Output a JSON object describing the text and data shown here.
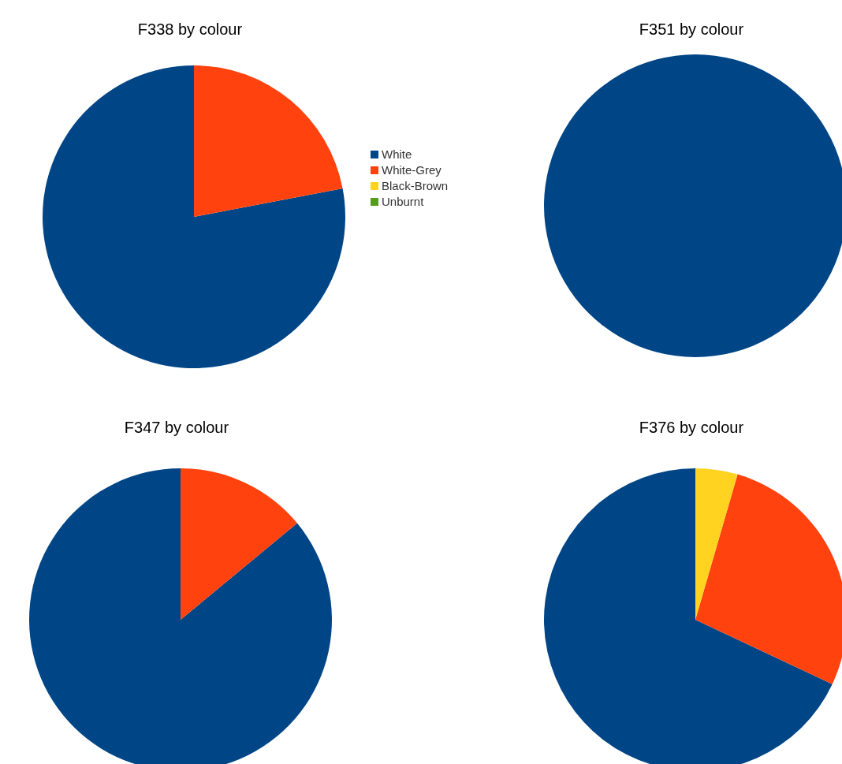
{
  "chart_data": [
    {
      "type": "pie",
      "title": "F338 by colour",
      "categories": [
        "White",
        "White-Grey",
        "Black-Brown",
        "Unburnt"
      ],
      "values": [
        78,
        22,
        0,
        0
      ],
      "colors": [
        "#004586",
        "#ff420e",
        "#ffd320",
        "#579d1c"
      ],
      "legend": "right"
    },
    {
      "type": "pie",
      "title": "F351 by colour",
      "categories": [
        null
      ],
      "values": [
        100
      ],
      "colors": [
        "#004586"
      ]
    },
    {
      "type": "pie",
      "title": "F347 by colour",
      "categories": [
        null,
        null
      ],
      "values": [
        86,
        14
      ],
      "colors": [
        "#004586",
        "#ff420e"
      ]
    },
    {
      "type": "pie",
      "title": "F376 by colour",
      "categories": [
        null,
        null,
        null
      ],
      "values": [
        68,
        27.5,
        4.5
      ],
      "colors": [
        "#004586",
        "#ff420e",
        "#ffd320"
      ]
    }
  ]
}
